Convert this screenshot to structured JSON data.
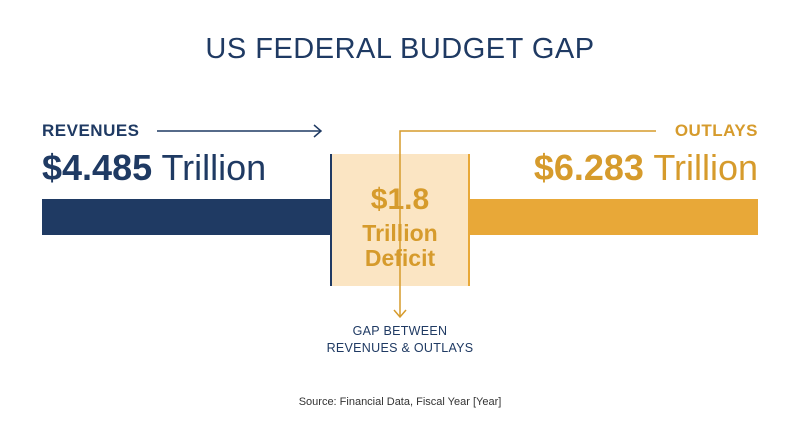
{
  "colors": {
    "revenues": "#1f3a63",
    "outlays": "#e8a838",
    "outlays_text": "#d69b2c",
    "deficit_fill": "#fbe5c3",
    "text": "#1f3a63"
  },
  "chart_data": {
    "type": "bar",
    "title": "US FEDERAL BUDGET GAP",
    "unit": "Trillion",
    "series": [
      {
        "name": "REVENUES",
        "value": 4.485,
        "label": "$4.485"
      },
      {
        "name": "OUTLAYS",
        "value": 6.283,
        "label": "$6.283"
      }
    ],
    "deficit": {
      "value": 1.8,
      "amount_label": "$1.8",
      "line1": "Trillion",
      "line2": "Deficit",
      "note_line1": "GAP BETWEEN",
      "note_line2": "REVENUES & OUTLAYS"
    },
    "source": "Source: Financial Data, Fiscal Year [Year]"
  }
}
